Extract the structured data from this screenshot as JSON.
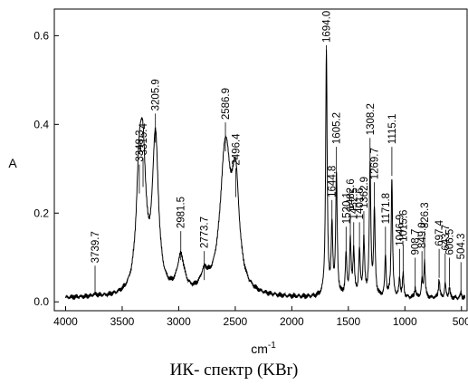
{
  "caption": "ИК- спектр (KBr)",
  "chart_data": {
    "type": "line",
    "xlabel": "cm",
    "xlabel_sup": "-1",
    "ylabel": "A",
    "xlim": [
      4100,
      450
    ],
    "ylim": [
      -0.02,
      0.66
    ],
    "x_ticks": [
      4000,
      3500,
      3000,
      2500,
      2000,
      1500,
      1000,
      500
    ],
    "y_ticks": [
      0.0,
      0.2,
      0.4,
      0.6
    ],
    "y_tick_labels": [
      "0.0",
      "0.2",
      "0.4",
      "0.6"
    ],
    "line_color": "#000000",
    "peaks": [
      {
        "x": 3739.7,
        "y": 0.012,
        "label": "3739.7"
      },
      {
        "x": 3348.3,
        "y": 0.24,
        "label": "3348.3"
      },
      {
        "x": 3315.4,
        "y": 0.255,
        "label": "3315.4"
      },
      {
        "x": 3205.9,
        "y": 0.355,
        "label": "3205.9"
      },
      {
        "x": 2981.5,
        "y": 0.09,
        "label": "2981.5"
      },
      {
        "x": 2773.7,
        "y": 0.045,
        "label": "2773.7"
      },
      {
        "x": 2586.9,
        "y": 0.335,
        "label": "2586.9"
      },
      {
        "x": 2496.4,
        "y": 0.232,
        "label": "2496.4"
      },
      {
        "x": 1694.0,
        "y": 0.56,
        "label": "1694.0"
      },
      {
        "x": 1644.8,
        "y": 0.16,
        "label": "1644.8"
      },
      {
        "x": 1605.2,
        "y": 0.28,
        "label": "1605.2"
      },
      {
        "x": 1520.1,
        "y": 0.1,
        "label": "1520.1"
      },
      {
        "x": 1482.6,
        "y": 0.13,
        "label": "1482.6"
      },
      {
        "x": 1452.5,
        "y": 0.11,
        "label": "1452.5"
      },
      {
        "x": 1401.6,
        "y": 0.11,
        "label": "1401.6"
      },
      {
        "x": 1362.9,
        "y": 0.135,
        "label": "1362.9"
      },
      {
        "x": 1308.2,
        "y": 0.3,
        "label": "1308.2"
      },
      {
        "x": 1269.7,
        "y": 0.2,
        "label": "1269.7"
      },
      {
        "x": 1171.8,
        "y": 0.1,
        "label": "1171.8"
      },
      {
        "x": 1115.1,
        "y": 0.28,
        "label": "1115.1"
      },
      {
        "x": 1046.9,
        "y": 0.05,
        "label": "1046.9"
      },
      {
        "x": 1015.6,
        "y": 0.06,
        "label": "1015.6"
      },
      {
        "x": 908.7,
        "y": 0.03,
        "label": "908.7"
      },
      {
        "x": 849.0,
        "y": 0.045,
        "label": "849.0"
      },
      {
        "x": 826.3,
        "y": 0.09,
        "label": "826.3"
      },
      {
        "x": 697.4,
        "y": 0.05,
        "label": "697.4"
      },
      {
        "x": 643.7,
        "y": 0.04,
        "label": "643.7"
      },
      {
        "x": 606.5,
        "y": 0.03,
        "label": "606.5"
      },
      {
        "x": 504.3,
        "y": 0.02,
        "label": "504.3"
      }
    ]
  }
}
